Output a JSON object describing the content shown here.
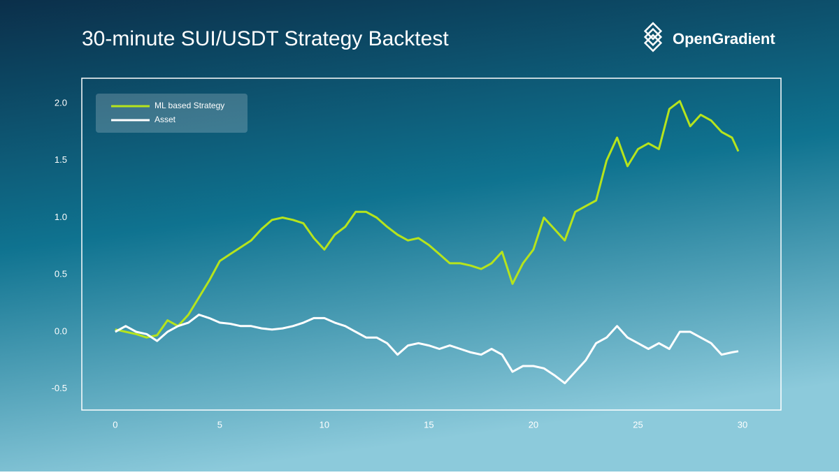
{
  "header": {
    "brand": "OpenGradient"
  },
  "chart_data": {
    "type": "line",
    "title": "30-minute SUI/USDT Strategy Backtest",
    "x": [
      0,
      0.5,
      1,
      1.5,
      2,
      2.5,
      3,
      3.5,
      4,
      4.5,
      5,
      5.5,
      6,
      6.5,
      7,
      7.5,
      8,
      8.5,
      9,
      9.5,
      10,
      10.5,
      11,
      11.5,
      12,
      12.5,
      13,
      13.5,
      14,
      14.5,
      15,
      15.5,
      16,
      16.5,
      17,
      17.5,
      18,
      18.5,
      19,
      19.5,
      20,
      20.5,
      21,
      21.5,
      22,
      22.5,
      23,
      23.5,
      24,
      24.5,
      25,
      25.5,
      26,
      26.5,
      27,
      27.5,
      28,
      28.5,
      29,
      29.5,
      29.8
    ],
    "series": [
      {
        "name": "ML based Strategy",
        "color": "#b6e41c",
        "values": [
          0.02,
          0.0,
          -0.02,
          -0.05,
          -0.03,
          0.1,
          0.05,
          0.15,
          0.3,
          0.45,
          0.62,
          0.68,
          0.74,
          0.8,
          0.9,
          0.98,
          1.0,
          0.98,
          0.95,
          0.82,
          0.72,
          0.85,
          0.92,
          1.05,
          1.05,
          1.0,
          0.92,
          0.85,
          0.8,
          0.82,
          0.76,
          0.68,
          0.6,
          0.6,
          0.58,
          0.55,
          0.6,
          0.7,
          0.42,
          0.6,
          0.72,
          1.0,
          0.9,
          0.8,
          1.05,
          1.1,
          1.15,
          1.5,
          1.7,
          1.45,
          1.6,
          1.65,
          1.6,
          1.95,
          2.02,
          1.8,
          1.9,
          1.85,
          1.75,
          1.7,
          1.58
        ]
      },
      {
        "name": "Asset",
        "color": "#ffffff",
        "values": [
          0.0,
          0.05,
          0.0,
          -0.02,
          -0.08,
          0.0,
          0.05,
          0.08,
          0.15,
          0.12,
          0.08,
          0.07,
          0.05,
          0.05,
          0.03,
          0.02,
          0.03,
          0.05,
          0.08,
          0.12,
          0.12,
          0.08,
          0.05,
          0.0,
          -0.05,
          -0.05,
          -0.1,
          -0.2,
          -0.12,
          -0.1,
          -0.12,
          -0.15,
          -0.12,
          -0.15,
          -0.18,
          -0.2,
          -0.15,
          -0.2,
          -0.35,
          -0.3,
          -0.3,
          -0.32,
          -0.38,
          -0.45,
          -0.35,
          -0.25,
          -0.1,
          -0.05,
          0.05,
          -0.05,
          -0.1,
          -0.15,
          -0.1,
          -0.15,
          0.0,
          0.0,
          -0.05,
          -0.1,
          -0.2,
          -0.18,
          -0.17
        ]
      }
    ],
    "xlim": [
      -1.6,
      31.84
    ],
    "ylim": [
      -0.685,
      2.22
    ],
    "xticks": [
      0,
      5,
      10,
      15,
      20,
      25,
      30
    ],
    "yticks": [
      {
        "value": 2,
        "label": "2.0"
      },
      {
        "value": 1.5,
        "label": "1.5"
      },
      {
        "value": 1,
        "label": "1.0"
      },
      {
        "value": 0.5,
        "label": "0.5"
      },
      {
        "value": 0,
        "label": "0.0"
      },
      {
        "value": -0.5,
        "label": "-0.5"
      }
    ],
    "grid": false,
    "legend": "upper left"
  }
}
